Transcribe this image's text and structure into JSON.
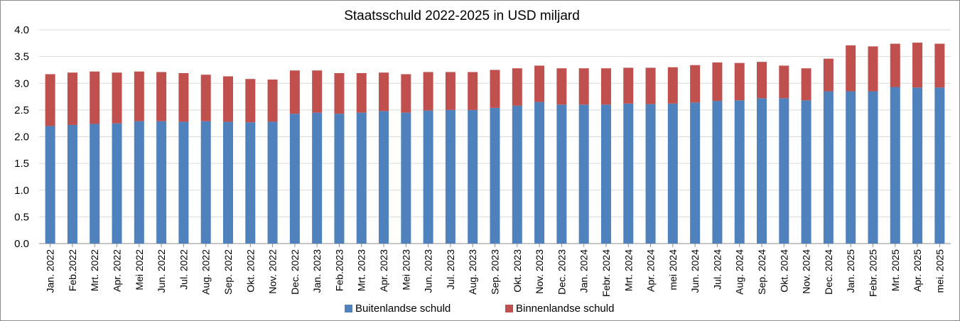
{
  "chart_data": {
    "type": "bar",
    "stacked": true,
    "title": "Staatsschuld  2022-2025 in USD miljard",
    "xlabel": "",
    "ylabel": "",
    "ylim": [
      0,
      4
    ],
    "yticks": [
      "0.0",
      "0.5",
      "1.0",
      "1.5",
      "2.0",
      "2.5",
      "3.0",
      "3.5",
      "4.0"
    ],
    "grid": "horizontal",
    "legend": "bottom",
    "categories": [
      "Jan. 2022",
      "Feb.2022",
      "Mrt. 2022",
      "Apr. 2022",
      "Mei 2022",
      "Jun. 2022",
      "Jul. 2022",
      "Aug. 2022",
      "Sep. 2022",
      "Okt. 2022",
      "Nov. 2022",
      "Dec. 2022",
      "Jan. 2023",
      "Feb.2023",
      "Mrt. 2023",
      "Apr. 2023",
      "Mei 2023",
      "Jun. 2023",
      "Jul. 2023",
      "Aug. 2023",
      "Sep. 2023",
      "Okt. 2023",
      "Nov. 2023",
      "Dec. 2023",
      "Jan. 2024",
      "Febr. 2024",
      "Mrt. 2024",
      "Apr. 2024",
      "mei 2024",
      "Jun. 2024",
      "Jul. 2024",
      "Aug. 2024",
      "Sep. 2024",
      "Okt. 2024",
      "Nov. 2024",
      "Dec. 2024",
      "Jan. 2025",
      "Febr. 2025",
      "Mrt. 2025",
      "Apr. 2025",
      "mei. 2025"
    ],
    "series": [
      {
        "name": "Buitenlandse schuld",
        "color": "#4f81bd",
        "values": [
          2.2,
          2.22,
          2.24,
          2.25,
          2.29,
          2.29,
          2.28,
          2.29,
          2.28,
          2.27,
          2.28,
          2.43,
          2.45,
          2.43,
          2.45,
          2.48,
          2.45,
          2.49,
          2.5,
          2.5,
          2.54,
          2.58,
          2.65,
          2.6,
          2.6,
          2.6,
          2.62,
          2.61,
          2.62,
          2.64,
          2.67,
          2.68,
          2.72,
          2.72,
          2.68,
          2.85,
          2.85,
          2.85,
          2.93,
          2.92,
          2.92
        ]
      },
      {
        "name": "Binnenlandse schuld",
        "color": "#c0504d",
        "values": [
          0.97,
          0.98,
          0.98,
          0.95,
          0.93,
          0.92,
          0.91,
          0.87,
          0.85,
          0.81,
          0.79,
          0.81,
          0.79,
          0.76,
          0.74,
          0.72,
          0.72,
          0.72,
          0.71,
          0.71,
          0.71,
          0.7,
          0.68,
          0.68,
          0.68,
          0.68,
          0.67,
          0.68,
          0.68,
          0.7,
          0.72,
          0.7,
          0.68,
          0.61,
          0.6,
          0.61,
          0.86,
          0.84,
          0.81,
          0.84,
          0.82
        ]
      }
    ]
  }
}
